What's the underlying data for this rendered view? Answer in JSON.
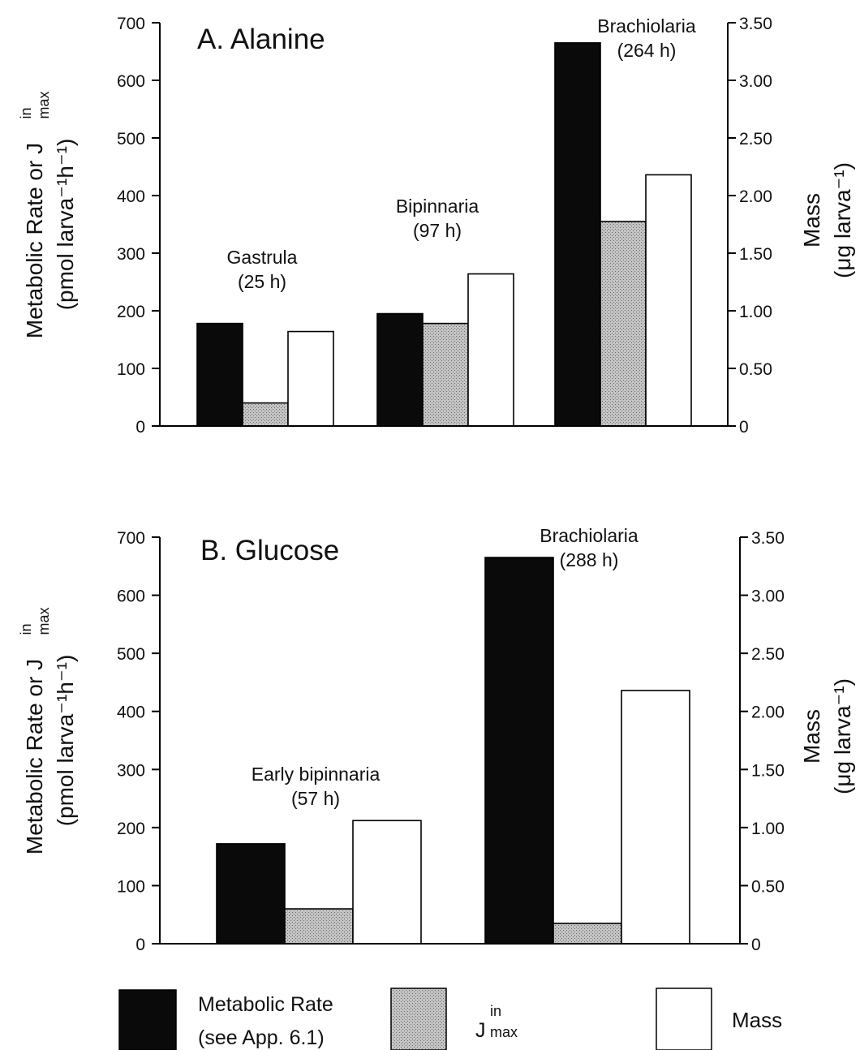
{
  "colors": {
    "metabolic": "#0a0a0a",
    "jmax": "#b4b4b4",
    "mass": "#ffffff",
    "stroke": "#000000"
  },
  "chart_data": [
    {
      "type": "bar",
      "title": "A. Alanine",
      "ylabel_line1": "Metabolic Rate or J",
      "ylabel_sup": "in",
      "ylabel_sub": "max",
      "ylabel_line2": "(pmol larva⁻¹h⁻¹)",
      "y2label_line1": "Mass",
      "y2label_line2": "(μg larva⁻¹)",
      "ylim": [
        0,
        700
      ],
      "yticks": [
        "0",
        "100",
        "200",
        "300",
        "400",
        "500",
        "600",
        "700"
      ],
      "y2lim": [
        0,
        3.5
      ],
      "y2ticks": [
        "0",
        "0.50",
        "1.00",
        "1.50",
        "2.00",
        "2.50",
        "3.00",
        "3.50"
      ],
      "categories": [
        {
          "name": "Gastrula",
          "time": "(25 h)"
        },
        {
          "name": "Bipinnaria",
          "time": "(97 h)"
        },
        {
          "name": "Brachiolaria",
          "time": "(264 h)"
        }
      ],
      "series": [
        {
          "key": "metabolic",
          "axis": "left",
          "values": [
            178,
            195,
            665
          ]
        },
        {
          "key": "jmax",
          "axis": "left",
          "values": [
            40,
            178,
            355
          ]
        },
        {
          "key": "mass",
          "axis": "right",
          "values": [
            0.82,
            1.32,
            2.18
          ]
        }
      ]
    },
    {
      "type": "bar",
      "title": "B. Glucose",
      "ylabel_line1": "Metabolic Rate or J",
      "ylabel_sup": "in",
      "ylabel_sub": "max",
      "ylabel_line2": "(pmol larva⁻¹h⁻¹)",
      "y2label_line1": "Mass",
      "y2label_line2": "(μg larva⁻¹)",
      "ylim": [
        0,
        700
      ],
      "yticks": [
        "0",
        "100",
        "200",
        "300",
        "400",
        "500",
        "600",
        "700"
      ],
      "y2lim": [
        0,
        3.5
      ],
      "y2ticks": [
        "0",
        "0.50",
        "1.00",
        "1.50",
        "2.00",
        "2.50",
        "3.00",
        "3.50"
      ],
      "categories": [
        {
          "name": "Early bipinnaria",
          "time": "(57 h)"
        },
        {
          "name": "Brachiolaria",
          "time": "(288 h)"
        }
      ],
      "series": [
        {
          "key": "metabolic",
          "axis": "left",
          "values": [
            172,
            665
          ]
        },
        {
          "key": "jmax",
          "axis": "left",
          "values": [
            60,
            35
          ]
        },
        {
          "key": "mass",
          "axis": "right",
          "values": [
            1.06,
            2.18
          ]
        }
      ]
    }
  ],
  "legend": {
    "metabolic_line1": "Metabolic Rate",
    "metabolic_line2": "(see App. 6.1)",
    "jmax_base": "J",
    "jmax_sup": "in",
    "jmax_sub": "max",
    "mass": "Mass"
  }
}
